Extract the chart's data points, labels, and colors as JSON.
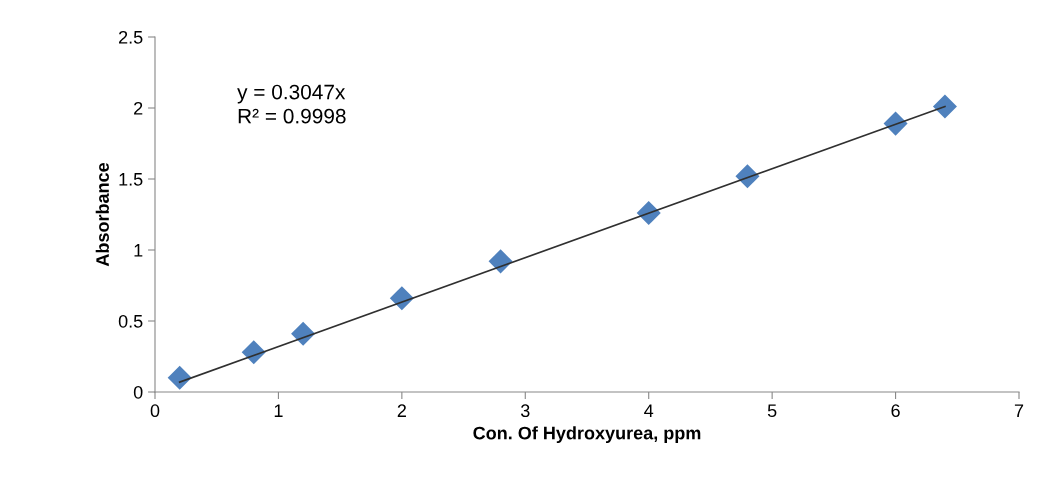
{
  "chart_data": {
    "type": "scatter",
    "xlabel": "Con. Of Hydroxyurea, ppm",
    "ylabel": "Absorbance",
    "x": [
      0.2,
      0.8,
      1.2,
      2.0,
      2.8,
      4.0,
      4.8,
      6.0,
      6.4
    ],
    "series": [
      {
        "color": "#4f81bd",
        "marker": "diamond",
        "values": [
          0.1,
          0.28,
          0.41,
          0.66,
          0.92,
          1.26,
          1.52,
          1.89,
          2.01
        ]
      },
      {
        "type": "line",
        "color": "#303030",
        "marker": "none",
        "x": [
          0.2,
          6.4
        ],
        "values": [
          0.07,
          2.01
        ]
      }
    ],
    "annotations": [
      "y = 0.3047x",
      "R² = 0.9998"
    ],
    "xlim": [
      0,
      7
    ],
    "xticks": [
      0,
      1,
      2,
      3,
      4,
      5,
      6,
      7
    ],
    "ylim": [
      0,
      2.5
    ],
    "yticks": [
      0,
      0.5,
      1,
      1.5,
      2,
      2.5
    ],
    "grid": false,
    "legend": false
  }
}
